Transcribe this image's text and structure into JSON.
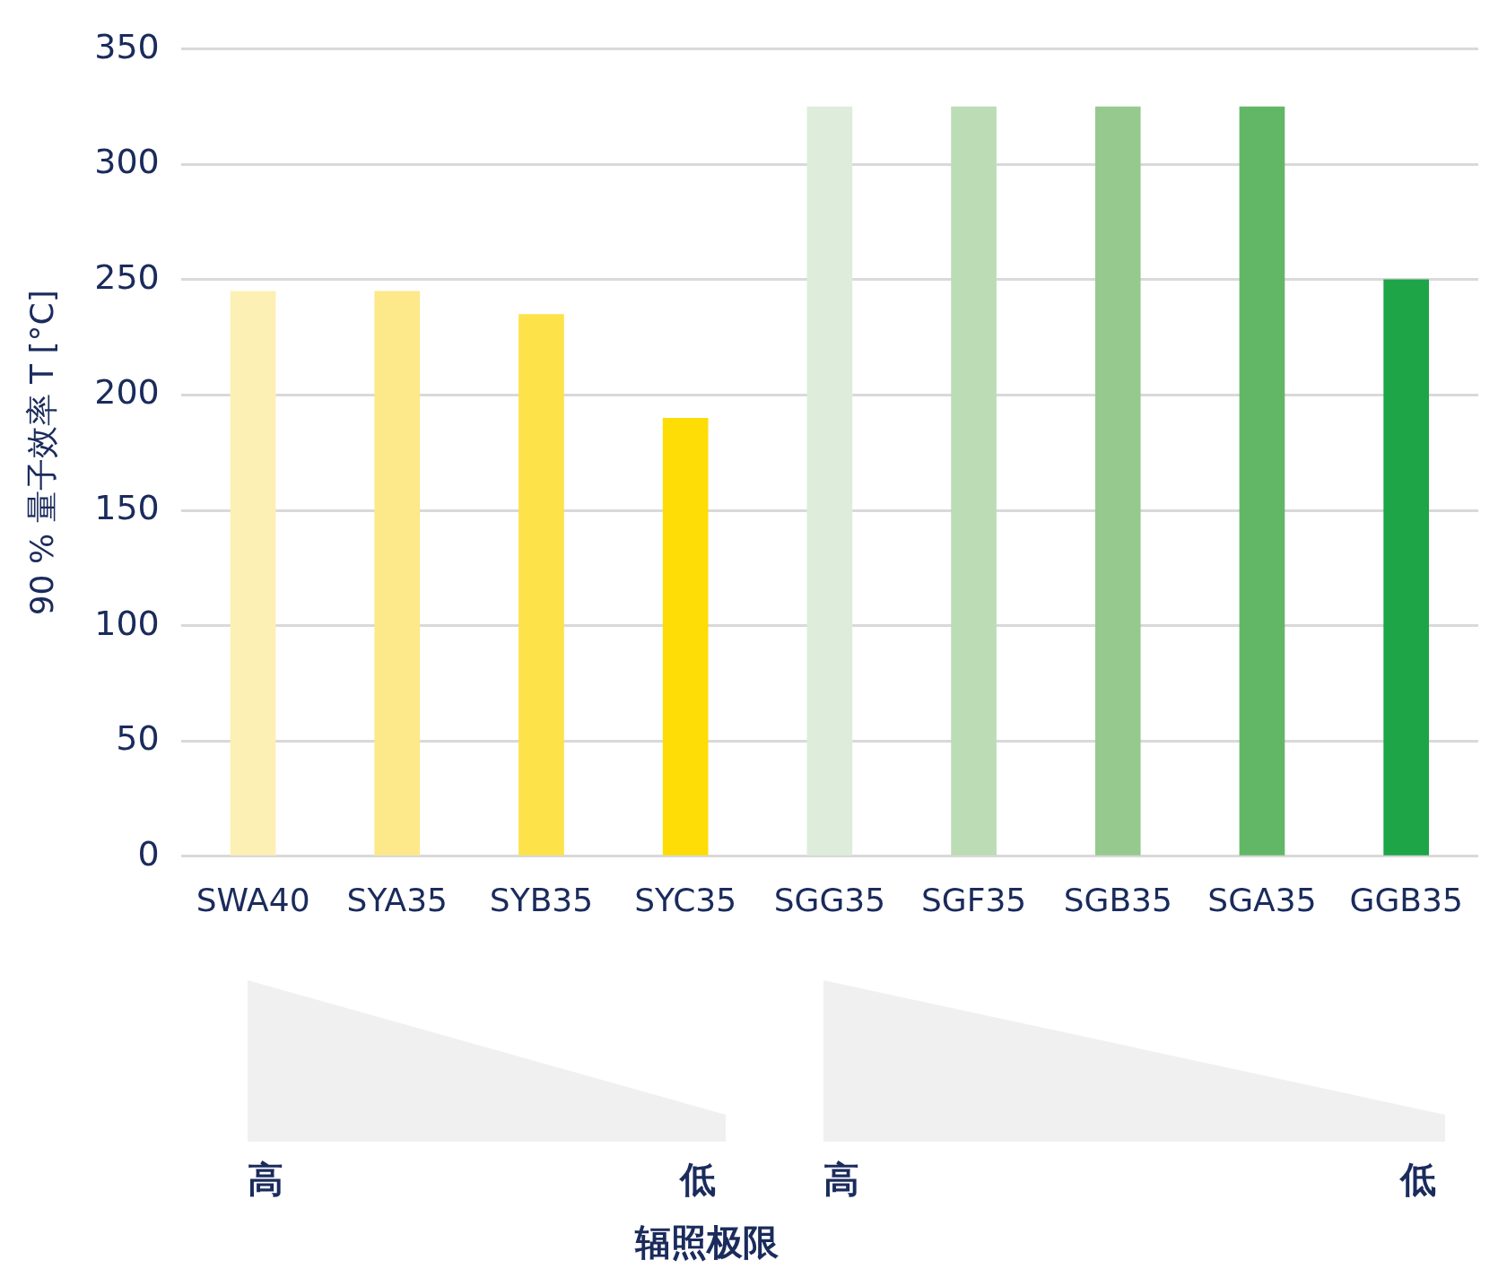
{
  "chart_data": {
    "type": "bar",
    "ylabel": "90 % 量子效率 T [°C]",
    "categories": [
      "SWA40",
      "SYA35",
      "SYB35",
      "SYC35",
      "SGG35",
      "SGF35",
      "SGB35",
      "SGA35",
      "GGB35"
    ],
    "values": [
      245,
      245,
      235,
      190,
      325,
      325,
      325,
      325,
      250
    ],
    "colors": [
      "#fdf0b4",
      "#fde88a",
      "#fde24a",
      "#fddd05",
      "#deeddb",
      "#bcdcb5",
      "#96c98e",
      "#62b767",
      "#1da548"
    ],
    "ylim": [
      0,
      350
    ],
    "yticks": [
      0,
      50,
      100,
      150,
      200,
      250,
      300,
      350
    ],
    "grid": "y",
    "annotations": [
      "高",
      "低",
      "高",
      "低",
      "辐照极限"
    ]
  }
}
